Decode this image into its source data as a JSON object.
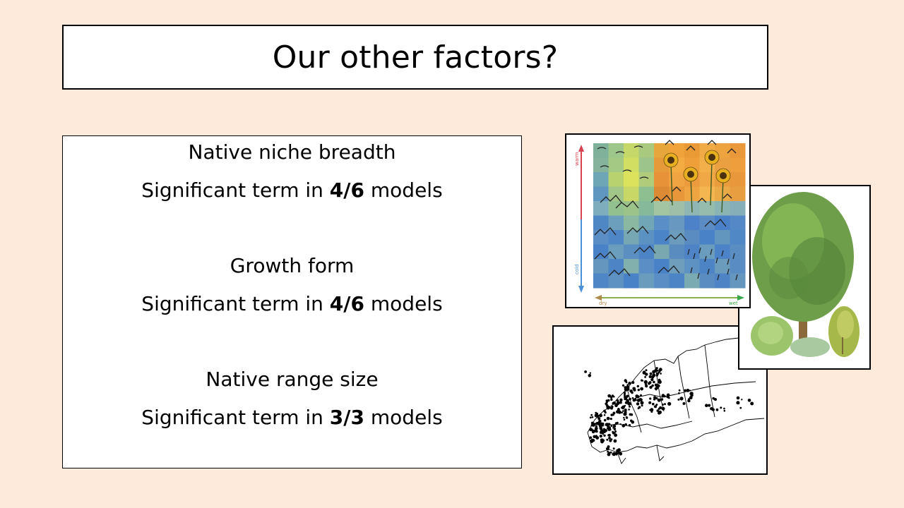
{
  "slide": {
    "title": "Our other factors?",
    "factors": [
      {
        "name": "Native niche breadth",
        "result_prefix": "Significant term in ",
        "fraction": "4/6",
        "result_suffix": " models"
      },
      {
        "name": "Growth form",
        "result_prefix": "Significant term in ",
        "fraction": "4/6",
        "result_suffix": " models"
      },
      {
        "name": "Native range size",
        "result_prefix": "Significant term in ",
        "fraction": "3/3",
        "result_suffix": " models"
      }
    ]
  },
  "niche_image": {
    "y_axis_top": "warm",
    "y_axis_bottom": "cold",
    "x_axis_left": "dry",
    "x_axis_right": "wet"
  },
  "colors": {
    "background": "#fdeada",
    "warm_axis": "#d9434f",
    "cold_axis": "#4a90d9",
    "dry_axis": "#b08a4a",
    "wet_axis": "#3aa84a"
  }
}
